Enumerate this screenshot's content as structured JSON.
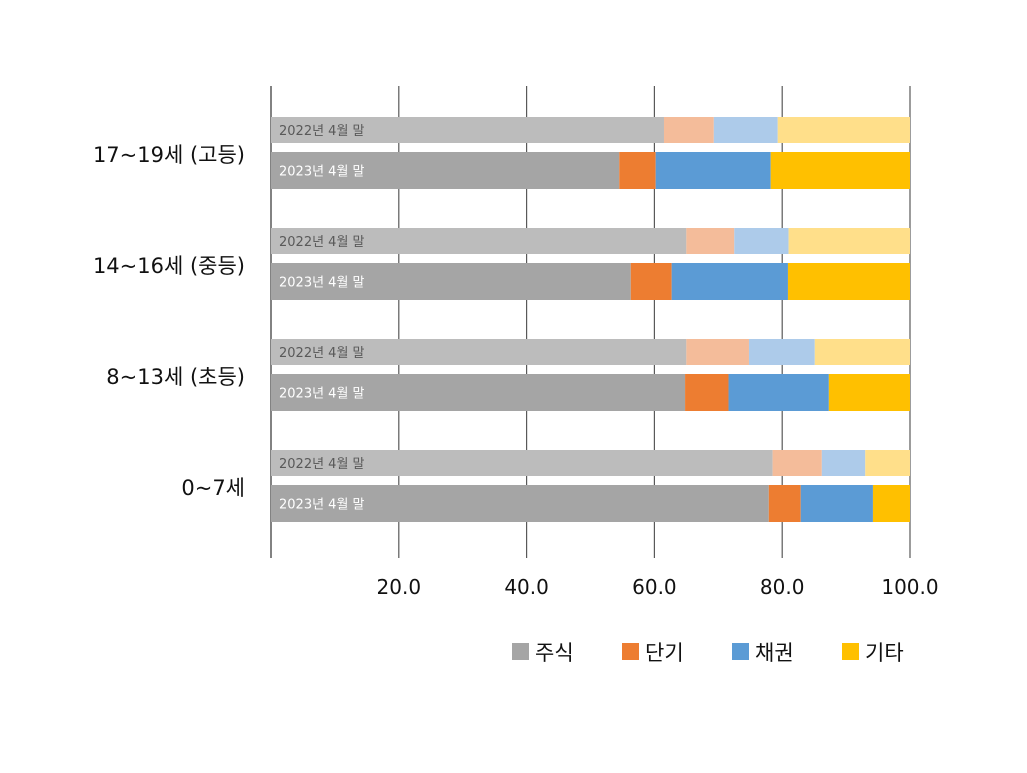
{
  "chart_data": {
    "type": "bar",
    "orientation": "horizontal",
    "stacked": true,
    "title": "",
    "xlabel": "",
    "ylabel": "",
    "xlim": [
      0,
      100
    ],
    "grid": true,
    "legend_position": "bottom",
    "x_ticks": [
      "20.0",
      "40.0",
      "60.0",
      "80.0",
      "100.0"
    ],
    "x_tick_values": [
      20,
      40,
      60,
      80,
      100
    ],
    "series": [
      {
        "name": "주식",
        "color_2023": "#a5a5a5",
        "color_2022": "#bcbcbc"
      },
      {
        "name": "단기",
        "color_2023": "#ed7d31",
        "color_2022": "#f4bc9a"
      },
      {
        "name": "채권",
        "color_2023": "#5b9bd5",
        "color_2022": "#adcbea"
      },
      {
        "name": "기타",
        "color_2023": "#ffc000",
        "color_2022": "#ffdf8a"
      }
    ],
    "groups": [
      {
        "label": "17~19세 (고등)",
        "bars": [
          {
            "label": "2022년 4월 말",
            "values": [
              61.5,
              7.8,
              10.0,
              20.7
            ]
          },
          {
            "label": "2023년 4월 말",
            "values": [
              54.5,
              5.7,
              18.0,
              21.8
            ]
          }
        ]
      },
      {
        "label": "14~16세 (중등)",
        "bars": [
          {
            "label": "2022년 4월 말",
            "values": [
              65.0,
              7.5,
              8.5,
              19.0
            ]
          },
          {
            "label": "2023년 4월 말",
            "values": [
              56.3,
              6.4,
              18.2,
              19.1
            ]
          }
        ]
      },
      {
        "label": "8~13세 (초등)",
        "bars": [
          {
            "label": "2022년 4월 말",
            "values": [
              65.0,
              9.8,
              10.3,
              14.9
            ]
          },
          {
            "label": "2023년 4월 말",
            "values": [
              64.8,
              6.8,
              15.7,
              12.7
            ]
          }
        ]
      },
      {
        "label": "0~7세",
        "bars": [
          {
            "label": "2022년 4월 말",
            "values": [
              78.5,
              7.7,
              6.8,
              7.0
            ]
          },
          {
            "label": "2023년 4월 말",
            "values": [
              77.9,
              5.0,
              11.3,
              5.8
            ]
          }
        ]
      }
    ]
  }
}
